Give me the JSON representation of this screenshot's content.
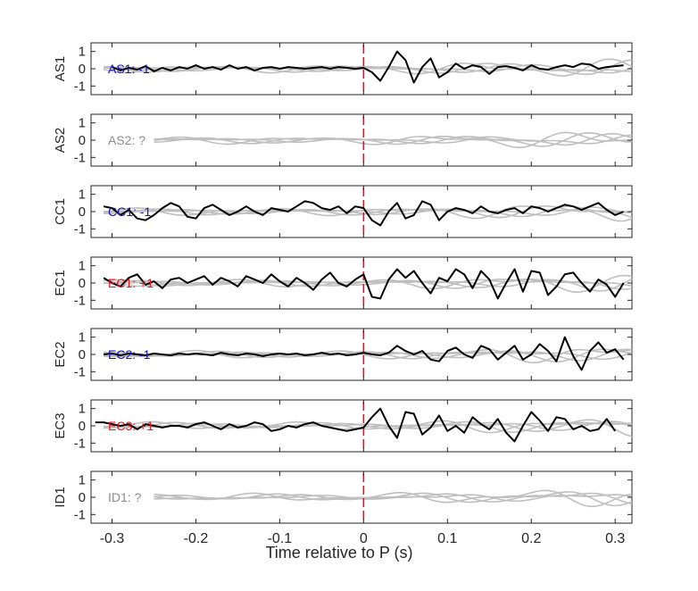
{
  "chart_data": {
    "type": "line",
    "xlabel": "Time relative to P (s)",
    "xlim": [
      -0.325,
      0.32
    ],
    "xticks": [
      -0.3,
      -0.2,
      -0.1,
      0,
      0.1,
      0.2,
      0.3
    ],
    "xtick_labels": [
      "-0.3",
      "-0.2",
      "-0.1",
      "0",
      "0.1",
      "0.2",
      "0.3"
    ],
    "ylim": [
      -1.5,
      1.5
    ],
    "yticks": [
      -1,
      0,
      1
    ],
    "ytick_labels": [
      "-1",
      "0",
      "1"
    ],
    "marker_x": 0,
    "colors": {
      "signal": "#000000",
      "background": "#bfbfbf",
      "marker": "#e8141c",
      "positive": "#e8141c",
      "negative": "#1414b4",
      "unknown": "#8c8c8c"
    },
    "panels": [
      {
        "ylabel": "AS1",
        "annotation": "AS1: -1",
        "polarity": "negative",
        "signal_x": [
          -0.3,
          -0.29,
          -0.28,
          -0.27,
          -0.26,
          -0.25,
          -0.24,
          -0.23,
          -0.22,
          -0.21,
          -0.2,
          -0.19,
          -0.18,
          -0.17,
          -0.16,
          -0.15,
          -0.14,
          -0.13,
          -0.12,
          -0.11,
          -0.1,
          -0.09,
          -0.08,
          -0.07,
          -0.06,
          -0.05,
          -0.04,
          -0.03,
          -0.02,
          -0.01,
          0,
          0.01,
          0.02,
          0.03,
          0.04,
          0.05,
          0.06,
          0.07,
          0.08,
          0.09,
          0.1,
          0.11,
          0.12,
          0.13,
          0.14,
          0.15,
          0.16,
          0.17,
          0.18,
          0.19,
          0.2,
          0.21,
          0.22,
          0.23,
          0.24,
          0.25,
          0.26,
          0.27,
          0.28,
          0.29,
          0.3,
          0.31
        ],
        "signal_y": [
          0.1,
          -0.1,
          0.05,
          -0.05,
          0.15,
          -0.15,
          0.05,
          -0.1,
          0.1,
          0,
          0.2,
          0,
          0.1,
          -0.05,
          0.2,
          0,
          0.1,
          -0.1,
          0.05,
          0.1,
          0,
          0.1,
          0.05,
          0,
          0.05,
          0.1,
          0,
          0.1,
          0.05,
          0,
          0.05,
          -0.2,
          -0.7,
          0.1,
          1.0,
          0.5,
          -0.8,
          0.1,
          0.6,
          -0.5,
          -0.2,
          0.3,
          0,
          0.2,
          0.1,
          -0.3,
          0.1,
          0.15,
          0.05,
          -0.1,
          0.2,
          0,
          -0.05,
          0.1,
          0.2,
          0.1,
          0.3,
          0.25,
          0,
          0.1,
          0.15,
          0.2
        ]
      },
      {
        "ylabel": "AS2",
        "annotation": "AS2: ?",
        "polarity": "unknown",
        "signal_x": [],
        "signal_y": []
      },
      {
        "ylabel": "CC1",
        "annotation": "CC1: -1",
        "polarity": "negative",
        "signal_x": [
          -0.31,
          -0.3,
          -0.29,
          -0.28,
          -0.27,
          -0.26,
          -0.25,
          -0.24,
          -0.23,
          -0.22,
          -0.21,
          -0.2,
          -0.19,
          -0.18,
          -0.17,
          -0.16,
          -0.15,
          -0.14,
          -0.13,
          -0.12,
          -0.11,
          -0.1,
          -0.09,
          -0.08,
          -0.07,
          -0.06,
          -0.05,
          -0.04,
          -0.03,
          -0.02,
          -0.01,
          0,
          0.01,
          0.02,
          0.03,
          0.04,
          0.05,
          0.06,
          0.07,
          0.08,
          0.09,
          0.1,
          0.11,
          0.12,
          0.13,
          0.14,
          0.15,
          0.16,
          0.17,
          0.18,
          0.19,
          0.2,
          0.21,
          0.22,
          0.23,
          0.24,
          0.25,
          0.26,
          0.27,
          0.28,
          0.29,
          0.3,
          0.31
        ],
        "signal_y": [
          0.3,
          0.2,
          -0.2,
          0.1,
          -0.4,
          -0.5,
          -0.2,
          0.2,
          0.5,
          0.3,
          -0.3,
          -0.4,
          0.2,
          0.4,
          0.1,
          -0.2,
          0,
          0.3,
          0,
          -0.2,
          0.2,
          0.1,
          0,
          0.3,
          0.6,
          0.5,
          0.2,
          0.1,
          0.3,
          -0.1,
          0.3,
          0.2,
          -0.5,
          -0.8,
          0,
          0.5,
          -0.4,
          -0.2,
          0.6,
          0.4,
          -0.5,
          0,
          0.2,
          0.1,
          -0.1,
          0.3,
          0,
          -0.1,
          0.1,
          0.2,
          -0.1,
          0.3,
          0.2,
          0,
          0.2,
          0.4,
          0.3,
          0.1,
          0.3,
          0.5,
          0.1,
          -0.2,
          0
        ]
      },
      {
        "ylabel": "EC1",
        "annotation": "EC1: +1",
        "polarity": "positive",
        "signal_x": [
          -0.31,
          -0.3,
          -0.29,
          -0.28,
          -0.27,
          -0.26,
          -0.25,
          -0.24,
          -0.23,
          -0.22,
          -0.21,
          -0.2,
          -0.19,
          -0.18,
          -0.17,
          -0.16,
          -0.15,
          -0.14,
          -0.13,
          -0.12,
          -0.11,
          -0.1,
          -0.09,
          -0.08,
          -0.07,
          -0.06,
          -0.05,
          -0.04,
          -0.03,
          -0.02,
          -0.01,
          0,
          0.01,
          0.02,
          0.03,
          0.04,
          0.05,
          0.06,
          0.07,
          0.08,
          0.09,
          0.1,
          0.11,
          0.12,
          0.13,
          0.14,
          0.15,
          0.16,
          0.17,
          0.18,
          0.19,
          0.2,
          0.21,
          0.22,
          0.23,
          0.24,
          0.25,
          0.26,
          0.27,
          0.28,
          0.29,
          0.3,
          0.31
        ],
        "signal_y": [
          0.3,
          0,
          -0.2,
          0.3,
          0.5,
          -0.1,
          0.1,
          -0.3,
          0.2,
          0.3,
          0,
          0.2,
          0.4,
          -0.1,
          0.3,
          0.1,
          -0.2,
          0.4,
          0.2,
          0,
          0.5,
          0.1,
          -0.2,
          0.3,
          0,
          -0.4,
          0.2,
          0.6,
          0,
          -0.2,
          0.2,
          0.5,
          -0.8,
          -0.9,
          0.2,
          0.8,
          0.3,
          0.7,
          0,
          -0.6,
          0.3,
          0.1,
          0.8,
          0.5,
          -0.3,
          0.7,
          0.2,
          -0.9,
          0,
          0.8,
          -0.5,
          0.7,
          0.6,
          -0.7,
          -0.2,
          0.5,
          0.6,
          0,
          -0.5,
          0.2,
          -0.1,
          -0.8,
          0
        ]
      },
      {
        "ylabel": "EC2",
        "annotation": "EC2: -1",
        "polarity": "negative",
        "signal_x": [
          -0.31,
          -0.3,
          -0.29,
          -0.28,
          -0.27,
          -0.26,
          -0.25,
          -0.24,
          -0.23,
          -0.22,
          -0.21,
          -0.2,
          -0.19,
          -0.18,
          -0.17,
          -0.16,
          -0.15,
          -0.14,
          -0.13,
          -0.12,
          -0.11,
          -0.1,
          -0.09,
          -0.08,
          -0.07,
          -0.06,
          -0.05,
          -0.04,
          -0.03,
          -0.02,
          -0.01,
          0,
          0.01,
          0.02,
          0.03,
          0.04,
          0.05,
          0.06,
          0.07,
          0.08,
          0.09,
          0.1,
          0.11,
          0.12,
          0.13,
          0.14,
          0.15,
          0.16,
          0.17,
          0.18,
          0.19,
          0.2,
          0.21,
          0.22,
          0.23,
          0.24,
          0.25,
          0.26,
          0.27,
          0.28,
          0.29,
          0.3,
          0.31
        ],
        "signal_y": [
          0,
          0.05,
          -0.05,
          0.05,
          0,
          -0.05,
          0.05,
          0,
          -0.05,
          0.05,
          0,
          0.05,
          0,
          -0.05,
          0.1,
          0,
          -0.05,
          0.05,
          0,
          -0.1,
          0,
          0.05,
          0,
          0.05,
          -0.05,
          0,
          0.1,
          0,
          0.05,
          -0.05,
          0,
          0.1,
          0,
          -0.05,
          0.1,
          0.5,
          0.2,
          0,
          0.2,
          -0.3,
          -0.4,
          0.2,
          0.4,
          0,
          -0.2,
          0.5,
          0.3,
          -0.3,
          0.1,
          0.5,
          -0.3,
          0,
          0.6,
          0.2,
          -0.4,
          1.0,
          -0.1,
          -0.9,
          0.2,
          0.7,
          0.1,
          0.3,
          -0.3
        ]
      },
      {
        "ylabel": "EC3",
        "annotation": "EC3: +1",
        "polarity": "positive",
        "signal_x": [
          -0.32,
          -0.31,
          -0.3,
          -0.29,
          -0.28,
          -0.27,
          -0.26,
          -0.25,
          -0.24,
          -0.23,
          -0.22,
          -0.21,
          -0.2,
          -0.19,
          -0.18,
          -0.17,
          -0.16,
          -0.15,
          -0.14,
          -0.13,
          -0.12,
          -0.11,
          -0.1,
          -0.09,
          -0.08,
          -0.07,
          -0.06,
          -0.05,
          -0.04,
          -0.03,
          -0.02,
          -0.01,
          0,
          0.01,
          0.02,
          0.03,
          0.04,
          0.05,
          0.06,
          0.07,
          0.08,
          0.09,
          0.1,
          0.11,
          0.12,
          0.13,
          0.14,
          0.15,
          0.16,
          0.17,
          0.18,
          0.19,
          0.2,
          0.21,
          0.22,
          0.23,
          0.24,
          0.25,
          0.26,
          0.27,
          0.28,
          0.29,
          0.3,
          0.31
        ],
        "signal_y": [
          0.2,
          0.2,
          0.1,
          0,
          0.1,
          -0.2,
          0.1,
          0,
          -0.1,
          0,
          0,
          -0.1,
          0.1,
          0.2,
          0,
          -0.2,
          0.1,
          -0.1,
          0,
          0.2,
          0.1,
          -0.3,
          -0.2,
          0,
          -0.1,
          0.1,
          0.2,
          0,
          -0.1,
          -0.2,
          -0.3,
          -0.2,
          -0.1,
          0.5,
          1.0,
          0,
          -0.7,
          0.8,
          0.7,
          -0.5,
          -0.1,
          0.6,
          -0.3,
          0,
          -0.4,
          0.5,
          0.1,
          -0.2,
          0.4,
          -0.4,
          -0.9,
          0,
          0.8,
          0.3,
          -0.3,
          0.5,
          0.4,
          -0.2,
          0,
          -0.3,
          -0.2,
          0.4,
          -0.3
        ]
      },
      {
        "ylabel": "ID1",
        "annotation": "ID1: ?",
        "polarity": "unknown",
        "signal_x": [],
        "signal_y": []
      }
    ]
  }
}
